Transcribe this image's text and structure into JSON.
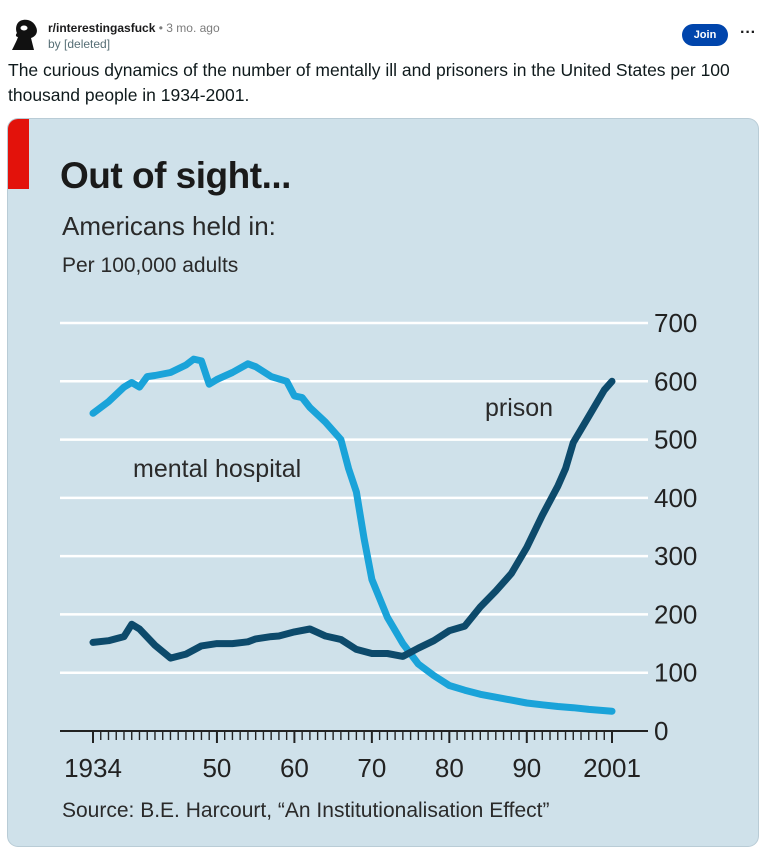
{
  "post": {
    "subreddit": "r/interestingasfuck",
    "separator": "•",
    "time": "3 mo. ago",
    "author": "by [deleted]",
    "join_label": "Join",
    "more_label": "···",
    "title": "The curious dynamics of the number of mentally ill and prisoners in the United States per 100 thousand people in 1934-2001."
  },
  "colors": {
    "join_bg": "#0045ac",
    "chart_bg": "#cfe1ea",
    "accent_red": "#e3120b",
    "mental_hospital_line": "#1aa3d9",
    "prison_line": "#0d4a6b"
  },
  "chart_data": {
    "type": "line",
    "title": "Out of sight...",
    "subtitle": "Americans held in:",
    "unit_note": "Per 100,000 adults",
    "source": "Source: B.E. Harcourt, “An Institutionalisation Effect”",
    "x_tick_labels": [
      "1934",
      "50",
      "60",
      "70",
      "80",
      "90",
      "2001"
    ],
    "x_tick_years": [
      1934,
      1950,
      1960,
      1970,
      1980,
      1990,
      2001
    ],
    "y_tick_labels": [
      "0",
      "100",
      "200",
      "300",
      "400",
      "500",
      "600",
      "700"
    ],
    "y_ticks": [
      0,
      100,
      200,
      300,
      400,
      500,
      600,
      700
    ],
    "xlim": [
      1934,
      2001
    ],
    "ylim": [
      0,
      700
    ],
    "grid": true,
    "y_axis_side": "right",
    "series": [
      {
        "name": "mental hospital",
        "x": [
          1934,
          1936,
          1938,
          1939,
          1940,
          1941,
          1942,
          1944,
          1946,
          1947,
          1948,
          1949,
          1950,
          1952,
          1954,
          1955,
          1957,
          1959,
          1960,
          1961,
          1962,
          1964,
          1966,
          1967,
          1968,
          1969,
          1970,
          1972,
          1974,
          1976,
          1978,
          1980,
          1982,
          1984,
          1986,
          1988,
          1990,
          1992,
          1994,
          1996,
          1998,
          2000,
          2001
        ],
        "y": [
          545,
          565,
          590,
          598,
          590,
          608,
          610,
          615,
          628,
          638,
          635,
          595,
          603,
          615,
          630,
          625,
          608,
          600,
          575,
          572,
          555,
          530,
          500,
          450,
          410,
          330,
          260,
          195,
          150,
          115,
          95,
          78,
          70,
          63,
          58,
          53,
          48,
          45,
          42,
          40,
          37,
          35,
          34
        ]
      },
      {
        "name": "prison",
        "x": [
          1934,
          1936,
          1938,
          1939,
          1940,
          1942,
          1944,
          1946,
          1948,
          1950,
          1952,
          1954,
          1955,
          1957,
          1958,
          1960,
          1962,
          1964,
          1966,
          1968,
          1970,
          1972,
          1974,
          1976,
          1978,
          1980,
          1982,
          1984,
          1986,
          1988,
          1990,
          1992,
          1994,
          1995,
          1996,
          1998,
          2000,
          2001
        ],
        "y": [
          152,
          155,
          162,
          183,
          175,
          147,
          125,
          132,
          146,
          150,
          150,
          153,
          158,
          162,
          163,
          170,
          175,
          163,
          157,
          140,
          133,
          133,
          128,
          142,
          155,
          172,
          180,
          213,
          240,
          270,
          315,
          370,
          420,
          450,
          495,
          540,
          585,
          600
        ]
      }
    ]
  }
}
